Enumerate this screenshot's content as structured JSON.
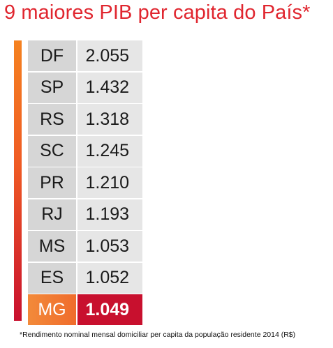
{
  "title": "9 maiores PIB per capita do País*",
  "footnote": "*Rendimento nominal mensal domiciliar per capita da população residente 2014 (R$)",
  "colors": {
    "title": "#e0262f",
    "highlight_value_bg": "#c8102e",
    "highlight_state_bg": "#f06c2c",
    "gradient_top": "#f58220",
    "gradient_bottom": "#c8102e"
  },
  "chart_data": {
    "type": "table",
    "title": "9 maiores PIB per capita do País*",
    "rows": [
      {
        "state": "DF",
        "value": "2.055",
        "highlight": false
      },
      {
        "state": "SP",
        "value": "1.432",
        "highlight": false
      },
      {
        "state": "RS",
        "value": "1.318",
        "highlight": false
      },
      {
        "state": "SC",
        "value": "1.245",
        "highlight": false
      },
      {
        "state": "PR",
        "value": "1.210",
        "highlight": false
      },
      {
        "state": "RJ",
        "value": "1.193",
        "highlight": false
      },
      {
        "state": "MS",
        "value": "1.053",
        "highlight": false
      },
      {
        "state": "ES",
        "value": "1.052",
        "highlight": false
      },
      {
        "state": "MG",
        "value": "1.049",
        "highlight": true
      }
    ]
  }
}
